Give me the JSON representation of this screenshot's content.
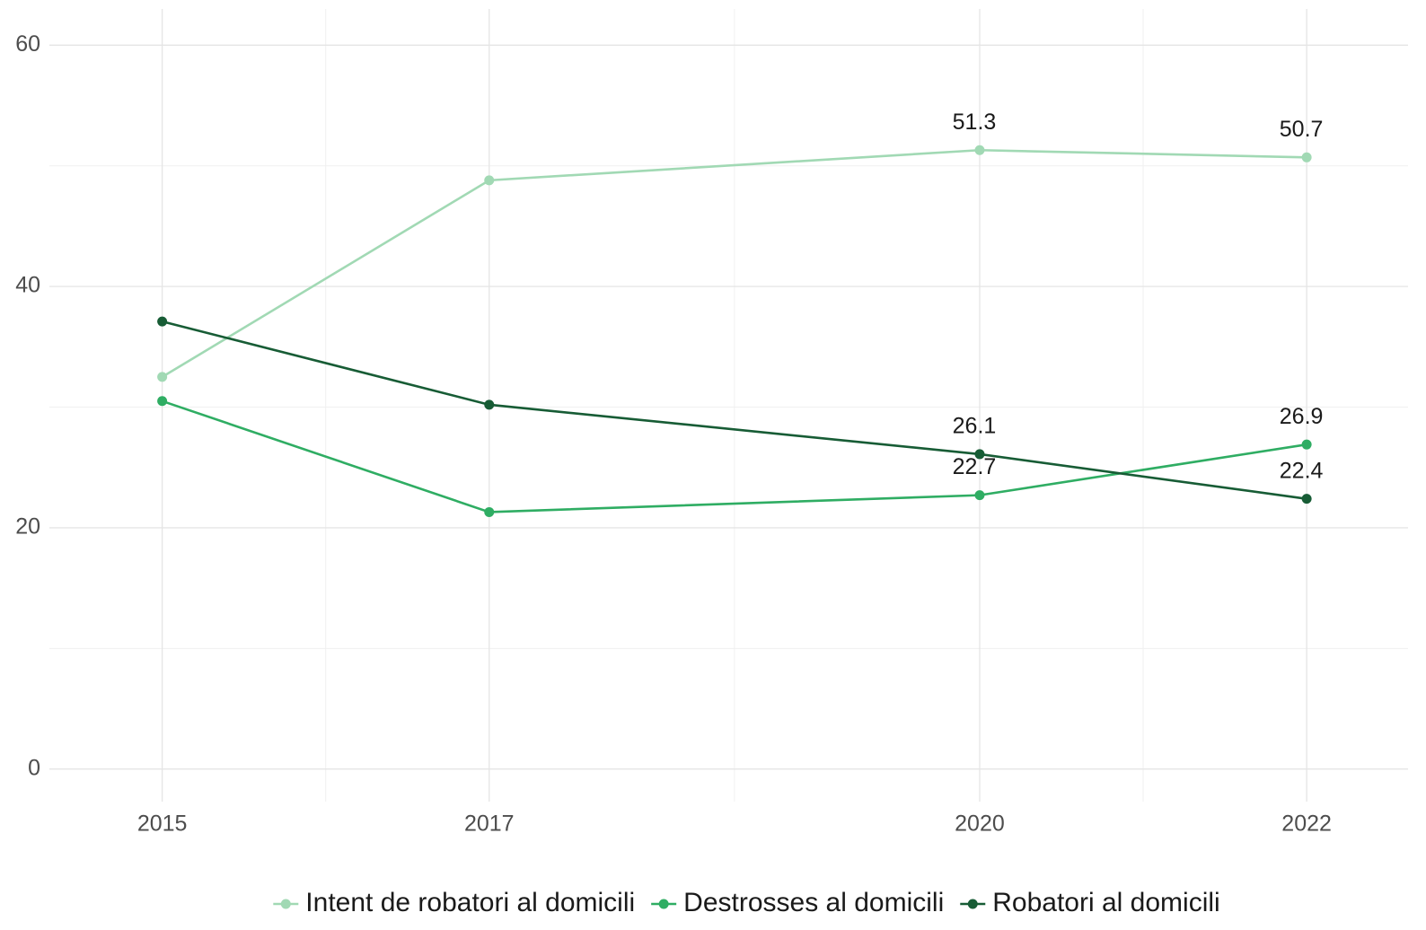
{
  "chart_data": {
    "type": "line",
    "x": [
      2015,
      2017,
      2020,
      2022
    ],
    "xlim": [
      2014.31,
      2022.62
    ],
    "xticks": [
      2015,
      2017,
      2020,
      2022
    ],
    "ylim": [
      -2.7,
      63
    ],
    "yticks": [
      0,
      20,
      40,
      60
    ],
    "grid": true,
    "legend": "bottom",
    "series": [
      {
        "name": "Intent de robatori al domicili",
        "color": "#a1d9b4",
        "values": [
          32.5,
          48.8,
          51.3,
          50.7
        ],
        "value_labels": [
          null,
          null,
          "51.3",
          "50.7"
        ]
      },
      {
        "name": "Destrosses al domicili",
        "color": "#2fad63",
        "values": [
          30.5,
          21.3,
          22.7,
          26.9
        ],
        "value_labels": [
          null,
          null,
          "22.7",
          "26.9"
        ]
      },
      {
        "name": "Robatori al domicili",
        "color": "#175c35",
        "values": [
          37.1,
          30.2,
          26.1,
          22.4
        ],
        "value_labels": [
          null,
          null,
          "26.1",
          "22.4"
        ]
      }
    ]
  }
}
